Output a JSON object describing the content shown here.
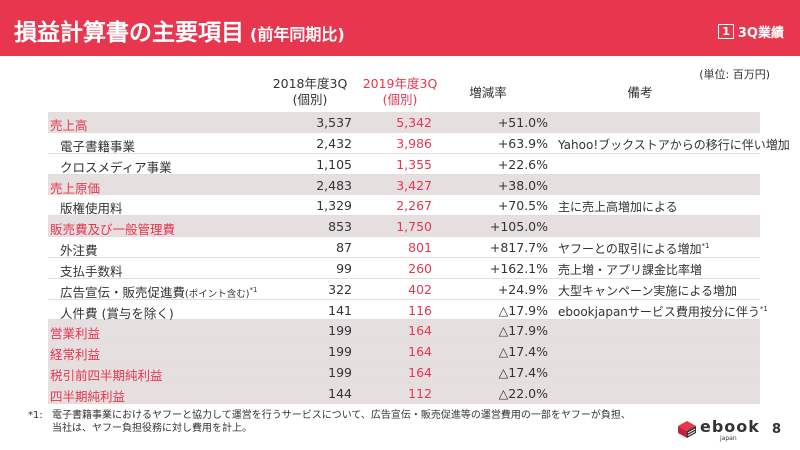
{
  "header": {
    "title": "損益計算書の主要項目",
    "subtitle": "(前年同期比)",
    "badge": "1",
    "right_label": "3Q業績"
  },
  "unit": "(単位: 百万円)",
  "columns": {
    "fy2018_line1": "2018年度3Q",
    "fy2018_line2": "(個別)",
    "fy2019_line1": "2019年度3Q",
    "fy2019_line2": "(個別)",
    "rate": "増減率",
    "note": "備考"
  },
  "rows": [
    {
      "label": "売上高",
      "v2018": "3,537",
      "v2019": "5,342",
      "rate": "+51.0%",
      "note": ""
    },
    {
      "label": "電子書籍事業",
      "v2018": "2,432",
      "v2019": "3,986",
      "rate": "+63.9%",
      "note": "Yahoo!ブックストアからの移行に伴い増加"
    },
    {
      "label": "クロスメディア事業",
      "v2018": "1,105",
      "v2019": "1,355",
      "rate": "+22.6%",
      "note": ""
    },
    {
      "label": "売上原価",
      "v2018": "2,483",
      "v2019": "3,427",
      "rate": "+38.0%",
      "note": ""
    },
    {
      "label": "版権使用料",
      "v2018": "1,329",
      "v2019": "2,267",
      "rate": "+70.5%",
      "note": "主に売上高増加による"
    },
    {
      "label": "販売費及び一般管理費",
      "v2018": "853",
      "v2019": "1,750",
      "rate": "+105.0%",
      "note": ""
    },
    {
      "label": "外注費",
      "v2018": "87",
      "v2019": "801",
      "rate": "+817.7%",
      "note": "ヤフーとの取引による増加",
      "note_sup": "*1"
    },
    {
      "label": "支払手数料",
      "v2018": "99",
      "v2019": "260",
      "rate": "+162.1%",
      "note": "売上増・アプリ課金比率増"
    },
    {
      "label": "広告宣伝・販売促進費",
      "label_small": "(ポイント含む)",
      "label_sup": "*1",
      "v2018": "322",
      "v2019": "402",
      "rate": "+24.9%",
      "note": "大型キャンペーン実施による増加"
    },
    {
      "label": "人件費 (賞与を除く)",
      "v2018": "141",
      "v2019": "116",
      "rate": "△17.9%",
      "note": "ebookjapanサービス費用按分に伴う",
      "note_sup": "*1"
    },
    {
      "label": "営業利益",
      "v2018": "199",
      "v2019": "164",
      "rate": "△17.9%",
      "note": ""
    },
    {
      "label": "経常利益",
      "v2018": "199",
      "v2019": "164",
      "rate": "△17.4%",
      "note": ""
    },
    {
      "label": "税引前四半期純利益",
      "v2018": "199",
      "v2019": "164",
      "rate": "△17.4%",
      "note": ""
    },
    {
      "label": "四半期純利益",
      "v2018": "144",
      "v2019": "112",
      "rate": "△22.0%",
      "note": ""
    }
  ],
  "footnote": {
    "mark": "*1:",
    "line1": "電子書籍事業におけるヤフーと協力して運営を行うサービスについて、広告宣伝・販売促進等の運営費用の一部をヤフーが負担、",
    "line2": "当社は、ヤフー負担役務に対し費用を計上。"
  },
  "logo": {
    "text": "ebook",
    "sub": "japan"
  },
  "page_number": "8",
  "colors": {
    "accent": "#e8364f",
    "band": "#e6dfe0"
  }
}
